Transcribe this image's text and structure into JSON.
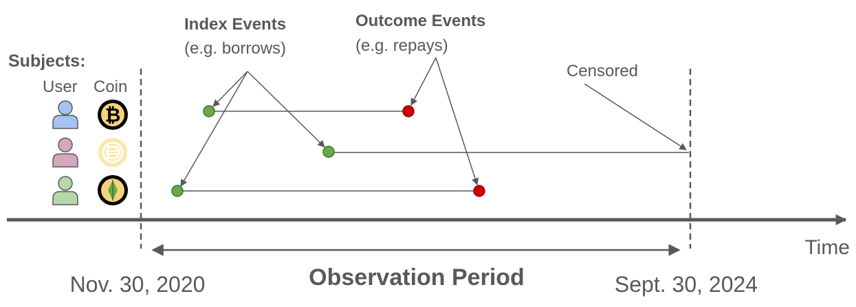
{
  "subjects": {
    "label": "Subjects:",
    "col_user": "User",
    "col_coin": "Coin"
  },
  "annotations": {
    "index_title": "Index Events",
    "index_sub": "(e.g. borrows)",
    "outcome_title": "Outcome Events",
    "outcome_sub": "(e.g. repays)",
    "censored": "Censored"
  },
  "axis": {
    "time_label": "Time",
    "start_date": "Nov. 30, 2020",
    "end_date": "Sept. 30, 2024",
    "period_label": "Observation Period"
  },
  "rows": [
    {
      "user_icon": "person-icon-blue",
      "coin_icon": "bitcoin-icon",
      "index": "2021",
      "end": "outcome"
    },
    {
      "user_icon": "person-icon-pink",
      "coin_icon": "dai-icon",
      "index": "2022",
      "end": "censored"
    },
    {
      "user_icon": "person-icon-green",
      "coin_icon": "ethereum-icon",
      "index": "2021",
      "end": "outcome"
    }
  ],
  "colors": {
    "text": "#595959",
    "index_event": "#6aa84f",
    "outcome_event": "#cc0000",
    "user_blue": "#a4c2f4",
    "user_pink": "#d5a6bd",
    "user_green": "#b6d7a8",
    "coin_gold": "#f6d37a",
    "coin_dai": "#fde7a6"
  }
}
